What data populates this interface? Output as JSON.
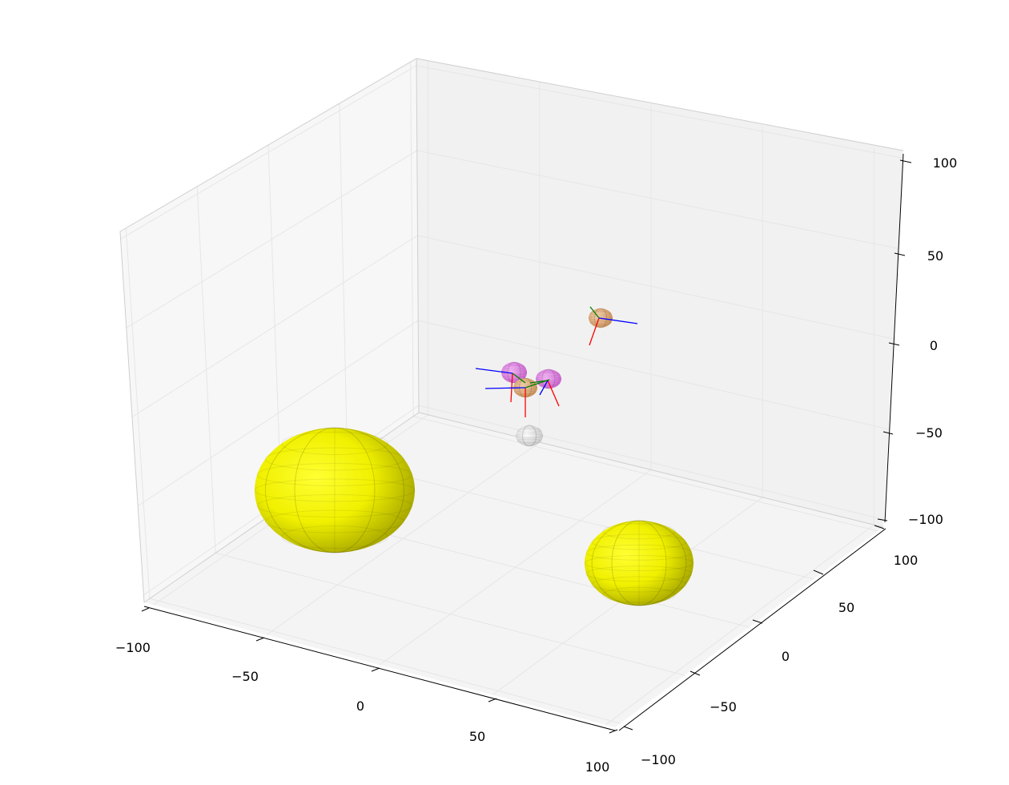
{
  "chart_data": {
    "type": "scatter3d",
    "title": "",
    "xlabel": "",
    "ylabel": "",
    "zlabel": "",
    "xlim": [
      -100,
      100
    ],
    "ylim": [
      -100,
      100
    ],
    "zlim": [
      -100,
      100
    ],
    "grid": true,
    "x_ticks": [
      "−100",
      "−50",
      "0",
      "50",
      "100"
    ],
    "y_ticks": [
      "−100",
      "−50",
      "0",
      "50",
      "100"
    ],
    "z_ticks": [
      "−100",
      "−50",
      "0",
      "50",
      "100"
    ],
    "pane_colors": {
      "left": "#f7f7f7",
      "back": "#f2f2f2",
      "floor": "#f4f4f4"
    },
    "spheres": [
      {
        "name": "large-yellow-sphere-left",
        "color": "#f2f200",
        "center": [
          -55,
          -60,
          -95
        ],
        "radius": 33,
        "style": "large"
      },
      {
        "name": "large-yellow-sphere-right",
        "color": "#f2f200",
        "center": [
          65,
          20,
          -90
        ],
        "radius": 24,
        "style": "large"
      },
      {
        "name": "small-white-sphere",
        "color": "#ececec",
        "center": [
          -5,
          15,
          -45
        ],
        "radius": 6,
        "style": "small"
      },
      {
        "name": "pink-sphere-1",
        "color": "#e58ae8",
        "center": [
          -15,
          10,
          -10
        ],
        "radius": 6,
        "style": "small"
      },
      {
        "name": "pink-sphere-2",
        "color": "#e58ae8",
        "center": [
          0,
          20,
          -15
        ],
        "radius": 6,
        "style": "small"
      },
      {
        "name": "orange-sphere-1",
        "color": "#e8b585",
        "center": [
          -8,
          18,
          -20
        ],
        "radius": 5,
        "style": "small"
      },
      {
        "name": "orange-sphere-2",
        "color": "#e8b585",
        "center": [
          25,
          45,
          10
        ],
        "radius": 6,
        "style": "small"
      }
    ],
    "axis_triads": [
      {
        "name": "triad-orange-2",
        "color_x": "#ff0000",
        "color_y": "#0000ff",
        "color_z": "#008000"
      },
      {
        "name": "triad-pink-1",
        "color_x": "#ff0000",
        "color_y": "#0000ff",
        "color_z": "#008000"
      },
      {
        "name": "triad-pink-2",
        "color_x": "#ff0000",
        "color_y": "#0000ff",
        "color_z": "#008000"
      },
      {
        "name": "triad-orange-1",
        "color_x": "#ff0000",
        "color_y": "#0000ff",
        "color_z": "#008000"
      }
    ]
  }
}
